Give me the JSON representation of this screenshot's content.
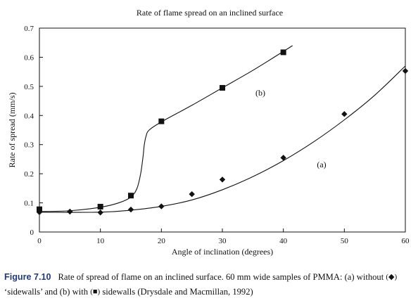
{
  "chart_data": {
    "type": "line",
    "title": "Rate of flame spread on an inclined surface",
    "xlabel": "Angle of inclination (degrees)",
    "ylabel": "Rate of spread (mm/s)",
    "xlim": [
      0,
      60
    ],
    "ylim": [
      0,
      0.7
    ],
    "xticks": [
      "0",
      "10",
      "20",
      "30",
      "40",
      "50",
      "60"
    ],
    "yticks": [
      "0",
      "0.1",
      "0.2",
      "0.3",
      "0.4",
      "0.5",
      "0.6",
      "0.7"
    ],
    "grid": false,
    "series": [
      {
        "name": "(a)",
        "marker": "diamond",
        "x": [
          0,
          5,
          10,
          15,
          20,
          25,
          30,
          40,
          50,
          60
        ],
        "y": [
          0.068,
          0.07,
          0.067,
          0.077,
          0.088,
          0.13,
          0.18,
          0.255,
          0.405,
          0.553
        ],
        "curve_x": [
          0,
          10,
          15,
          20,
          25,
          30,
          35,
          40,
          45,
          50,
          55,
          60
        ],
        "curve_y": [
          0.068,
          0.068,
          0.075,
          0.088,
          0.11,
          0.145,
          0.19,
          0.245,
          0.31,
          0.385,
          0.47,
          0.57
        ]
      },
      {
        "name": "(b)",
        "marker": "square",
        "x": [
          0,
          10,
          15,
          20,
          30,
          40
        ],
        "y": [
          0.078,
          0.087,
          0.125,
          0.38,
          0.495,
          0.617
        ],
        "curve_x": [
          0,
          5,
          10,
          13,
          15,
          16,
          16.6,
          17,
          17.2,
          17.5,
          18,
          20,
          25,
          30,
          35,
          40,
          41.5
        ],
        "curve_y": [
          0.07,
          0.073,
          0.085,
          0.1,
          0.12,
          0.15,
          0.2,
          0.26,
          0.3,
          0.33,
          0.35,
          0.378,
          0.435,
          0.495,
          0.555,
          0.62,
          0.64
        ]
      }
    ]
  },
  "caption": {
    "figure_label": "Figure 7.10",
    "text_1": "Rate of spread of flame on an inclined surface. 60 mm wide samples of PMMA: (a) without",
    "symbol_a": "(◆)",
    "text_2": "‘sidewalls’ and (b) with",
    "symbol_b": "(■)",
    "text_3": "sidewalls (Drysdale and Macmillan, 1992)"
  }
}
